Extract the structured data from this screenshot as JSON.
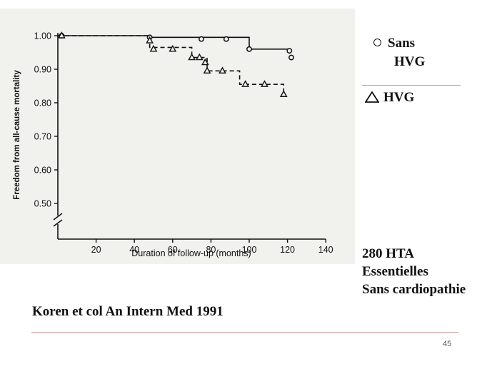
{
  "chart_data": {
    "type": "line",
    "ylabel": "Freedom from all-cause mortality",
    "xlabel": "Duration of follow-up (months)",
    "xlim": [
      0,
      140
    ],
    "ylim": [
      0.5,
      1.0
    ],
    "x_ticks": [
      20,
      40,
      60,
      80,
      100,
      120,
      140
    ],
    "y_ticks": [
      0.5,
      0.6,
      0.7,
      0.8,
      0.9,
      1.0
    ],
    "y_tick_labels": [
      "0.50",
      "0.60",
      "0.70",
      "0.80",
      "0.90",
      "1.00"
    ],
    "axis_break": true,
    "grid": false,
    "series": [
      {
        "name": "Sans HVG",
        "marker": "circle",
        "line_style": "solid",
        "steps": [
          [
            0,
            1.0
          ],
          [
            47,
            1.0
          ],
          [
            47,
            0.995
          ],
          [
            100,
            0.995
          ],
          [
            100,
            0.96
          ],
          [
            122,
            0.96
          ]
        ],
        "markers": [
          [
            2,
            1.0
          ],
          [
            48,
            0.995
          ],
          [
            75,
            0.99
          ],
          [
            88,
            0.99
          ],
          [
            100,
            0.96
          ],
          [
            121,
            0.955
          ],
          [
            122,
            0.935
          ]
        ]
      },
      {
        "name": "HVG",
        "marker": "triangle",
        "line_style": "dashed",
        "steps": [
          [
            0,
            1.0
          ],
          [
            48,
            1.0
          ],
          [
            48,
            0.965
          ],
          [
            70,
            0.965
          ],
          [
            70,
            0.935
          ],
          [
            78,
            0.935
          ],
          [
            78,
            0.895
          ],
          [
            95,
            0.895
          ],
          [
            95,
            0.855
          ],
          [
            118,
            0.855
          ],
          [
            118,
            0.825
          ]
        ],
        "markers": [
          [
            2,
            1.0
          ],
          [
            48,
            0.985
          ],
          [
            50,
            0.96
          ],
          [
            60,
            0.96
          ],
          [
            70,
            0.935
          ],
          [
            74,
            0.935
          ],
          [
            77,
            0.92
          ],
          [
            78,
            0.895
          ],
          [
            86,
            0.895
          ],
          [
            98,
            0.855
          ],
          [
            108,
            0.855
          ],
          [
            118,
            0.825
          ]
        ]
      }
    ]
  },
  "legend": {
    "sans_hvg_line1": "Sans",
    "sans_hvg_line2": "HVG",
    "hvg": "HVG"
  },
  "info": {
    "line1": "280 HTA",
    "line2": "Essentielles",
    "line3": "Sans cardiopathie"
  },
  "citation": "Koren et col An Intern Med 1991",
  "page_number": "45",
  "colors": {
    "chart_background": "#f1f1ee",
    "ink": "#111111",
    "divider": "#c8a0a0"
  }
}
